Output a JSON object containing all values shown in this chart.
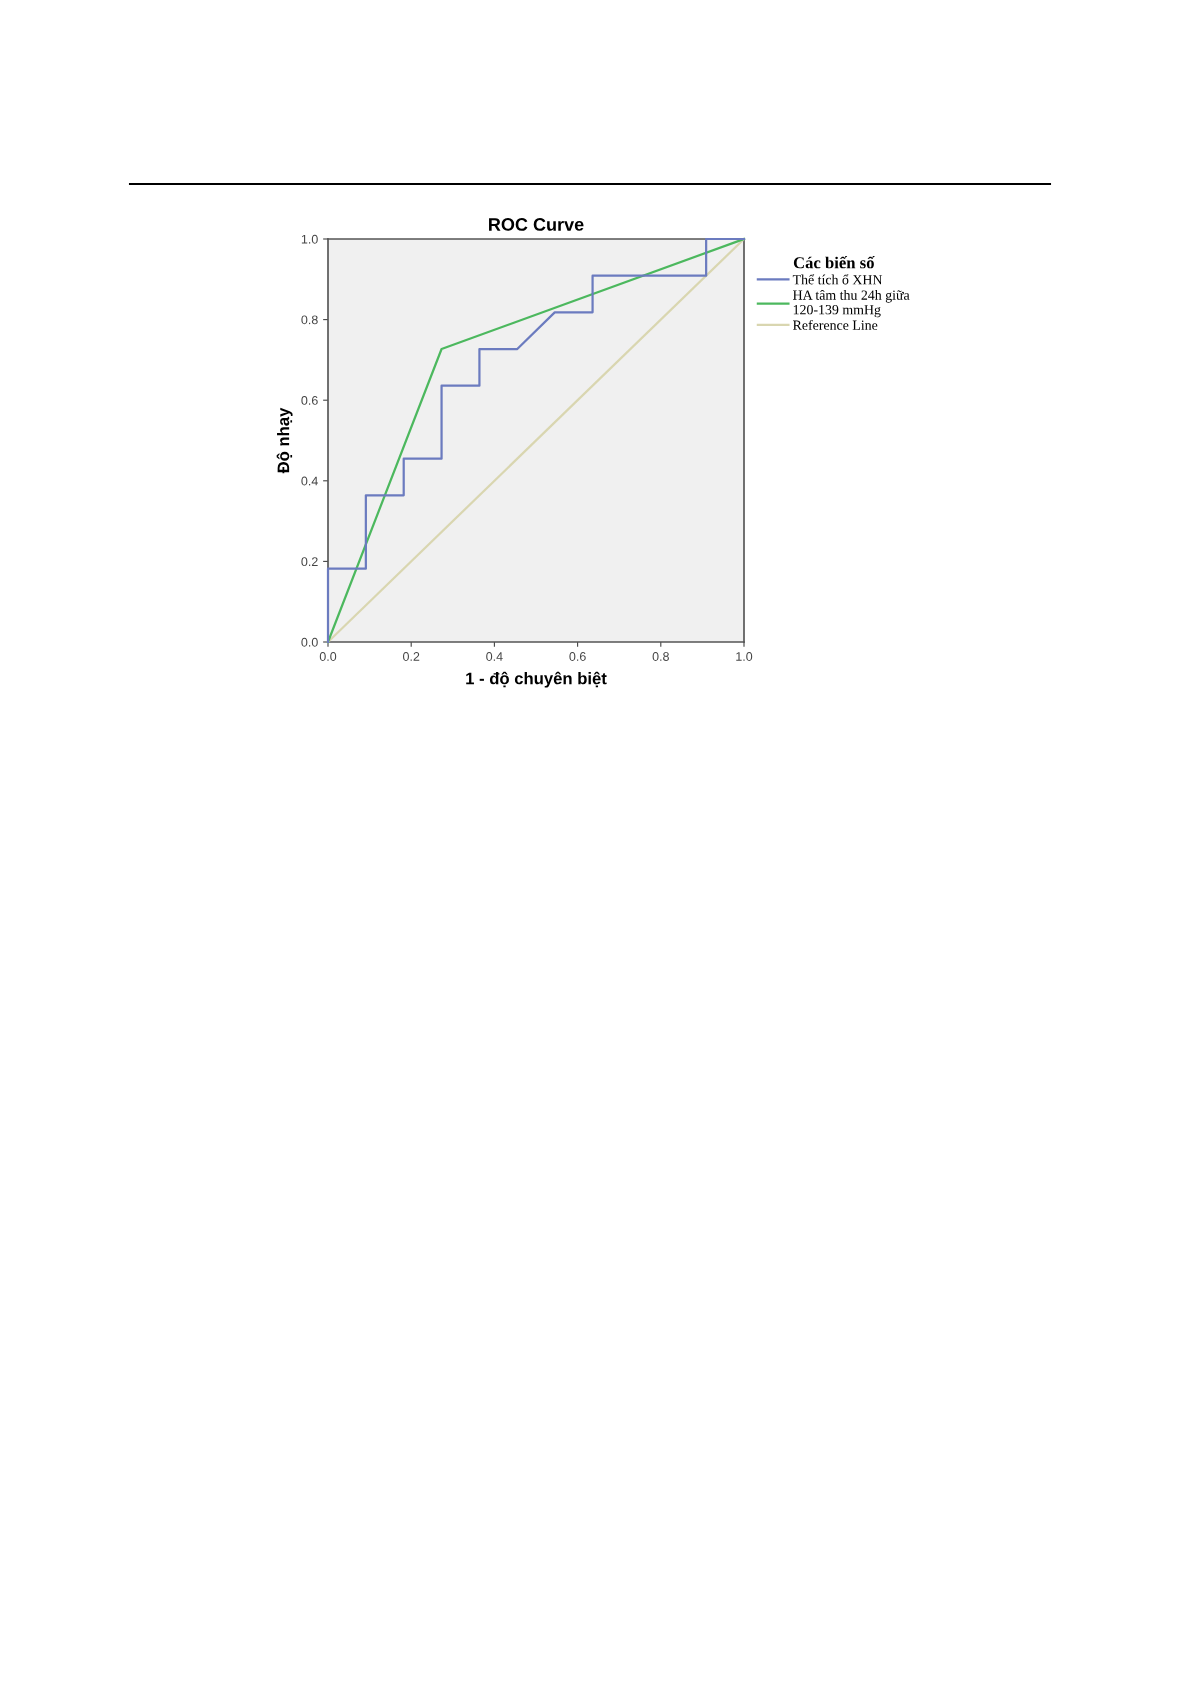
{
  "chart_data": {
    "type": "line",
    "title": "ROC Curve",
    "xlabel": "1 - độ chuyên biệt",
    "ylabel": "Độ nhạy",
    "legend_title": "Các biến số",
    "xlim": [
      0,
      1
    ],
    "ylim": [
      0,
      1
    ],
    "xticks": [
      {
        "value": 0,
        "label": "0.0"
      },
      0.2,
      0.4,
      0.6,
      0.8,
      {
        "value": 1,
        "label": "1.0"
      }
    ],
    "yticks": [
      {
        "value": 0,
        "label": "0.0"
      },
      0.2,
      0.4,
      0.6,
      0.8,
      {
        "value": 1,
        "label": "1.0"
      }
    ],
    "grid": false,
    "legend": "right",
    "marker": "none",
    "series": [
      {
        "name": "Thể tích ổ XHN",
        "color": "#6b7bbf",
        "x": [
          0,
          0,
          0.091,
          0.091,
          0.182,
          0.182,
          0.273,
          0.273,
          0.364,
          0.364,
          0.455,
          0.545,
          0.636,
          0.636,
          0.909,
          0.909,
          1
        ],
        "values": [
          0,
          0.182,
          0.182,
          0.364,
          0.364,
          0.455,
          0.455,
          0.636,
          0.636,
          0.727,
          0.727,
          0.818,
          0.818,
          0.909,
          0.909,
          1,
          1
        ]
      },
      {
        "name": "HA tâm thu 24h giữa\n120-139 mmHg",
        "color": "#4cb85e",
        "x": [
          0,
          0.273,
          1
        ],
        "values": [
          0,
          0.727,
          1
        ]
      },
      {
        "name": "Reference Line",
        "color": "#d9d6b0",
        "x": [
          0,
          1
        ],
        "values": [
          0,
          1
        ]
      }
    ]
  }
}
